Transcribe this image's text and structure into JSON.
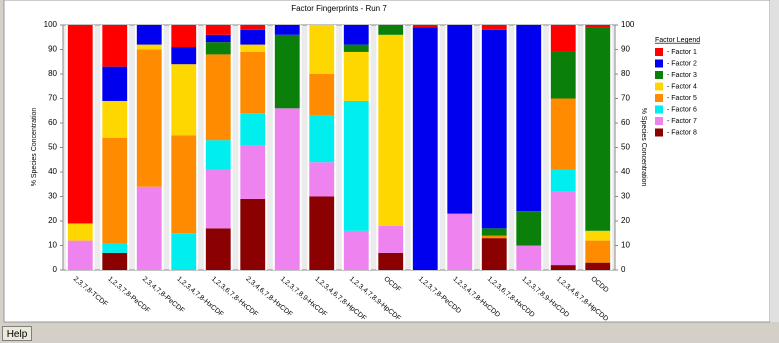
{
  "chart_data": {
    "type": "stacked_bar",
    "title": "Factor Fingerprints - Run 7",
    "y_label": "% Species Concentration",
    "y2_label": "% Species Concentration",
    "legend_title": "Factor Legend",
    "categories": [
      "2,3,7,8-TCDF",
      "1,2,3,7,8-PeCDF",
      "2,3,4,7,8-PeCDF",
      "1,2,3,4,7,8-HxCDF",
      "1,2,3,6,7,8-HxCDF",
      "2,3,4,6,7,8-HxCDF",
      "1,2,3,7,8,9-HxCDF",
      "1,2,3,4,6,7,8-HpCDF",
      "1,2,3,4,7,8,9-HpCDF",
      "OCDF",
      "1,2,3,7,8-PeCDD",
      "1,2,3,4,7,8-HxCDD",
      "1,2,3,6,7,8-HxCDD",
      "1,2,3,7,8,9-HxCDD",
      "1,2,3,4,6,7,8-HpCDD",
      "OCDD"
    ],
    "series": [
      {
        "name": "- Factor 8",
        "color": "#8b0000",
        "values": [
          0,
          7,
          0,
          0,
          17,
          29,
          0,
          30,
          0,
          7,
          0,
          0,
          13,
          0,
          2,
          3
        ]
      },
      {
        "name": "- Factor 7",
        "color": "#ee82ee",
        "values": [
          12,
          0,
          34,
          0,
          24,
          22,
          66,
          14,
          16,
          11,
          0,
          23,
          0,
          10,
          30,
          0
        ]
      },
      {
        "name": "- Factor 6",
        "color": "#00eeee",
        "values": [
          0,
          4,
          0,
          15,
          12,
          13,
          0,
          19,
          53,
          0,
          0,
          0,
          0,
          0,
          9,
          0
        ]
      },
      {
        "name": "- Factor 5",
        "color": "#ff8c00",
        "values": [
          0,
          43,
          56,
          40,
          35,
          25,
          0,
          17,
          0,
          0,
          0,
          0,
          1,
          0,
          29,
          9
        ]
      },
      {
        "name": "- Factor 4",
        "color": "#ffd700",
        "values": [
          7,
          15,
          2,
          29,
          0,
          3,
          0,
          20,
          20,
          78,
          0,
          0,
          0,
          0,
          0,
          4
        ]
      },
      {
        "name": "- Factor 3",
        "color": "#0a800a",
        "values": [
          0,
          0,
          0,
          0,
          5,
          0,
          30,
          0,
          3,
          4,
          0,
          0,
          3,
          14,
          19,
          83
        ]
      },
      {
        "name": "- Factor 2",
        "color": "#0000ee",
        "values": [
          0,
          14,
          8,
          7,
          3,
          6,
          4,
          0,
          8,
          0,
          99,
          77,
          81,
          76,
          0,
          0
        ]
      },
      {
        "name": "- Factor 1",
        "color": "#ff0000",
        "values": [
          81,
          17,
          0,
          9,
          4,
          2,
          0,
          0,
          0,
          0,
          1,
          0,
          2,
          0,
          11,
          1
        ]
      }
    ],
    "legend_order": [
      7,
      6,
      5,
      4,
      3,
      2,
      1,
      0
    ],
    "ylim": [
      0,
      100
    ],
    "yticks": [
      0,
      10,
      20,
      30,
      40,
      50,
      60,
      70,
      80,
      90,
      100
    ],
    "y2lim": [
      0,
      100
    ],
    "y2ticks": [
      0,
      10,
      20,
      30,
      40,
      50,
      60,
      70,
      80,
      90,
      100
    ]
  },
  "help_button": "Help"
}
